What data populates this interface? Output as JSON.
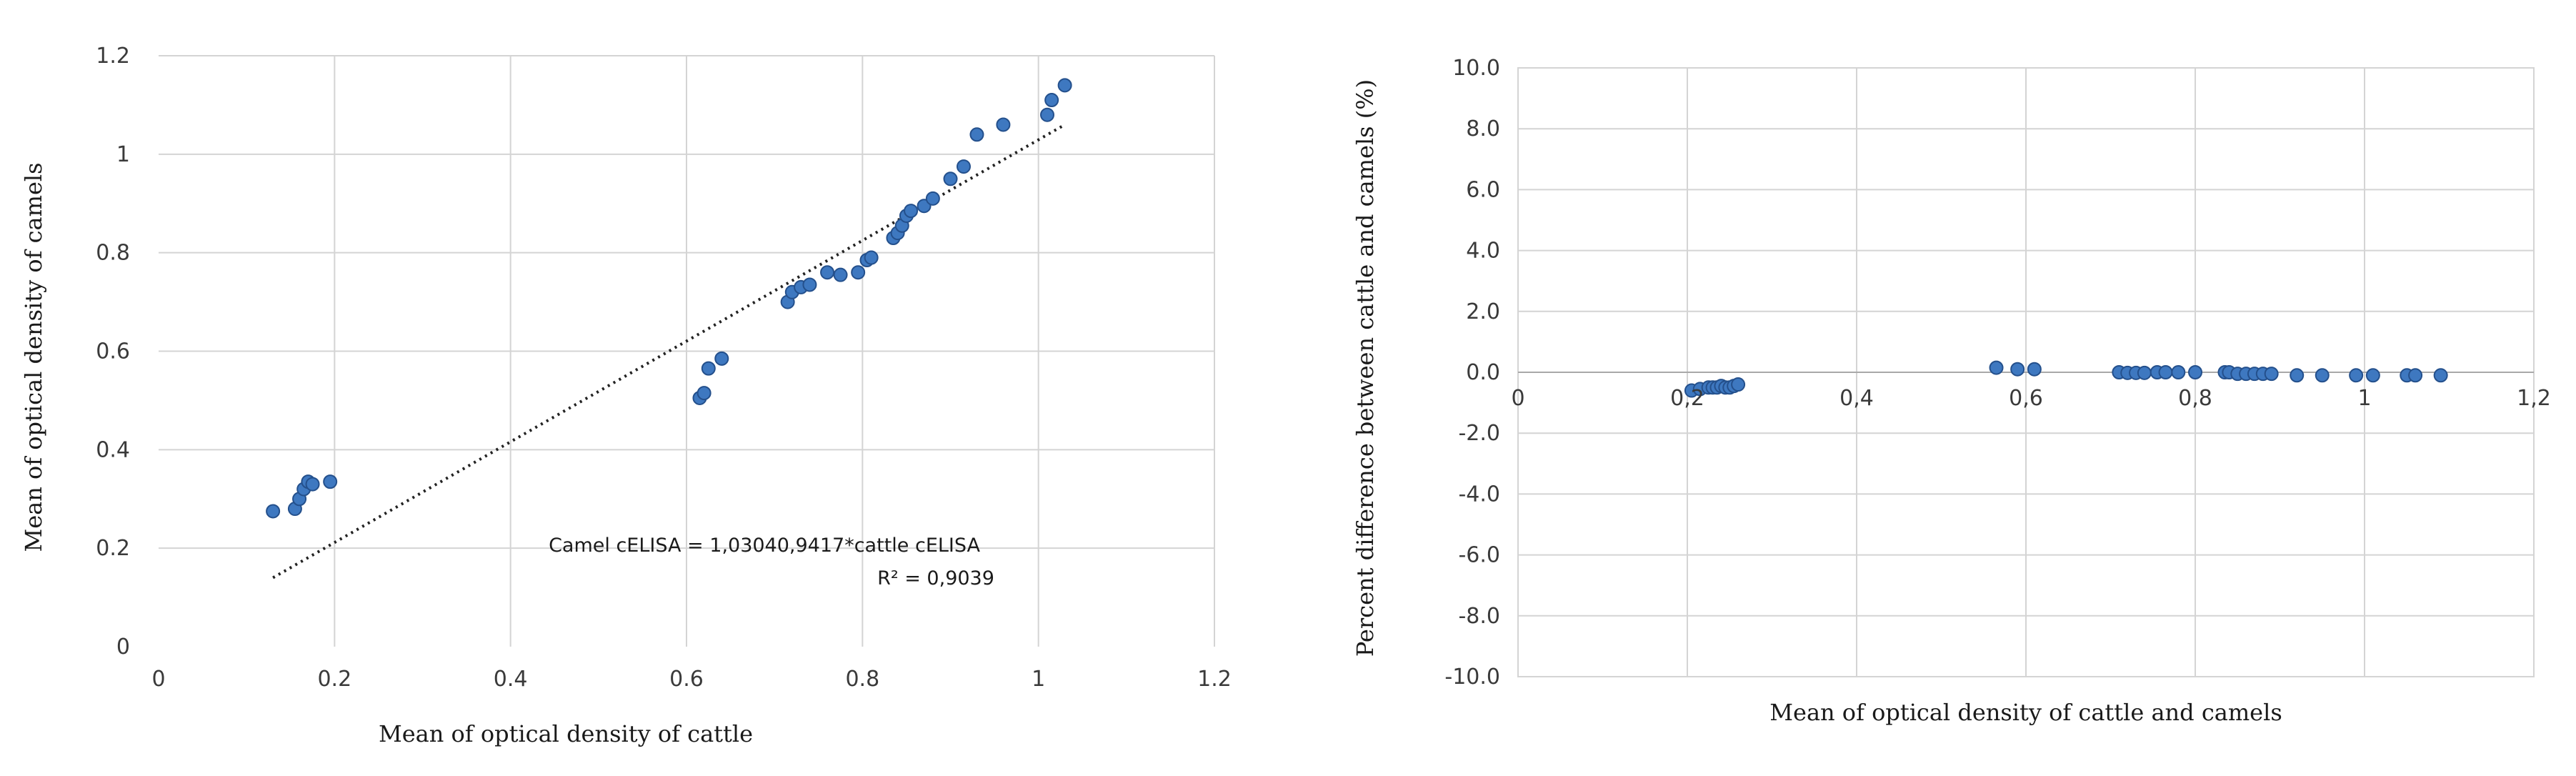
{
  "chart_data": [
    {
      "type": "scatter",
      "xlabel": "Mean of optical density of cattle",
      "ylabel": "Mean of optical density of camels",
      "xlim": [
        0,
        1.2
      ],
      "ylim": [
        0,
        1.2
      ],
      "x_ticks": [
        "0",
        "0.2",
        "0.4",
        "0.6",
        "0.8",
        "1",
        "1.2"
      ],
      "y_ticks": [
        "0",
        "0.2",
        "0.4",
        "0.6",
        "0.8",
        "1",
        "1.2"
      ],
      "grid": true,
      "marker_color": "#3e78c0",
      "points": [
        [
          0.13,
          0.275
        ],
        [
          0.155,
          0.28
        ],
        [
          0.16,
          0.3
        ],
        [
          0.165,
          0.32
        ],
        [
          0.17,
          0.335
        ],
        [
          0.175,
          0.33
        ],
        [
          0.195,
          0.335
        ],
        [
          0.615,
          0.505
        ],
        [
          0.62,
          0.515
        ],
        [
          0.625,
          0.565
        ],
        [
          0.64,
          0.585
        ],
        [
          0.715,
          0.7
        ],
        [
          0.72,
          0.72
        ],
        [
          0.73,
          0.73
        ],
        [
          0.74,
          0.735
        ],
        [
          0.76,
          0.76
        ],
        [
          0.775,
          0.755
        ],
        [
          0.795,
          0.76
        ],
        [
          0.805,
          0.785
        ],
        [
          0.81,
          0.79
        ],
        [
          0.835,
          0.83
        ],
        [
          0.84,
          0.84
        ],
        [
          0.845,
          0.855
        ],
        [
          0.85,
          0.875
        ],
        [
          0.855,
          0.885
        ],
        [
          0.87,
          0.895
        ],
        [
          0.88,
          0.91
        ],
        [
          0.9,
          0.95
        ],
        [
          0.915,
          0.975
        ],
        [
          0.93,
          1.04
        ],
        [
          0.96,
          1.06
        ],
        [
          1.01,
          1.08
        ],
        [
          1.015,
          1.11
        ],
        [
          1.03,
          1.14
        ]
      ],
      "trendline": {
        "x": [
          0.13,
          1.03
        ],
        "y": [
          0.14,
          1.06
        ]
      },
      "annotation": {
        "equation": "Camel cELISA = 1,03040,9417*cattle cELISA",
        "r_squared": "R² = 0,9039"
      }
    },
    {
      "type": "scatter",
      "xlabel": "Mean of optical density of cattle and camels",
      "ylabel": "Percent difference between cattle and camels (%)",
      "xlim": [
        0,
        1.2
      ],
      "ylim": [
        -10,
        10
      ],
      "x_ticks": [
        "0",
        "0,2",
        "0,4",
        "0,6",
        "0,8",
        "1",
        "1,2"
      ],
      "y_ticks": [
        "-10.0",
        "-8.0",
        "-6.0",
        "-4.0",
        "-2.0",
        "0.0",
        "2.0",
        "4.0",
        "6.0",
        "8.0",
        "10.0"
      ],
      "grid": true,
      "marker_color": "#3e78c0",
      "points": [
        [
          0.205,
          -0.6
        ],
        [
          0.215,
          -0.55
        ],
        [
          0.225,
          -0.5
        ],
        [
          0.23,
          -0.5
        ],
        [
          0.235,
          -0.5
        ],
        [
          0.24,
          -0.45
        ],
        [
          0.245,
          -0.5
        ],
        [
          0.25,
          -0.5
        ],
        [
          0.255,
          -0.45
        ],
        [
          0.26,
          -0.4
        ],
        [
          0.565,
          0.15
        ],
        [
          0.59,
          0.1
        ],
        [
          0.61,
          0.1
        ],
        [
          0.71,
          0.0
        ],
        [
          0.72,
          -0.02
        ],
        [
          0.73,
          -0.02
        ],
        [
          0.74,
          -0.02
        ],
        [
          0.755,
          0.0
        ],
        [
          0.765,
          0.0
        ],
        [
          0.78,
          0.0
        ],
        [
          0.8,
          0.0
        ],
        [
          0.835,
          0.0
        ],
        [
          0.84,
          0.0
        ],
        [
          0.85,
          -0.05
        ],
        [
          0.86,
          -0.05
        ],
        [
          0.87,
          -0.05
        ],
        [
          0.88,
          -0.05
        ],
        [
          0.89,
          -0.05
        ],
        [
          0.92,
          -0.1
        ],
        [
          0.95,
          -0.1
        ],
        [
          0.99,
          -0.1
        ],
        [
          1.01,
          -0.1
        ],
        [
          1.05,
          -0.1
        ],
        [
          1.06,
          -0.1
        ],
        [
          1.09,
          -0.1
        ]
      ]
    }
  ]
}
